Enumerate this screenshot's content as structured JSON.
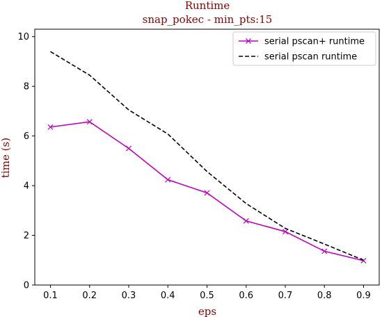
{
  "chart_data": {
    "type": "line",
    "title": "Runtime",
    "subtitle": "snap_pokec - min_pts:15",
    "xlabel": "eps",
    "ylabel": "time (s)",
    "xlim": [
      0.06,
      0.94
    ],
    "ylim": [
      0,
      10.3
    ],
    "x_ticks": [
      "0.1",
      "0.2",
      "0.3",
      "0.4",
      "0.5",
      "0.6",
      "0.7",
      "0.8",
      "0.9"
    ],
    "y_ticks": [
      "0",
      "2",
      "4",
      "6",
      "8",
      "10"
    ],
    "x": [
      0.1,
      0.2,
      0.3,
      0.4,
      0.5,
      0.6,
      0.7,
      0.8,
      0.9
    ],
    "legend_position": "top-right",
    "grid": false,
    "colors": {
      "title": "#8b0000",
      "series1": "#bf00bf",
      "series2": "#000000"
    },
    "series": [
      {
        "name": "serial pscan+ runtime",
        "style": "solid-x-marker",
        "values": [
          6.36,
          6.57,
          5.5,
          4.24,
          3.71,
          2.58,
          2.15,
          1.36,
          0.98
        ]
      },
      {
        "name": "serial pscan runtime",
        "style": "dashed",
        "values": [
          9.4,
          8.45,
          7.05,
          6.08,
          4.57,
          3.28,
          2.28,
          1.65,
          1.0
        ]
      }
    ]
  }
}
